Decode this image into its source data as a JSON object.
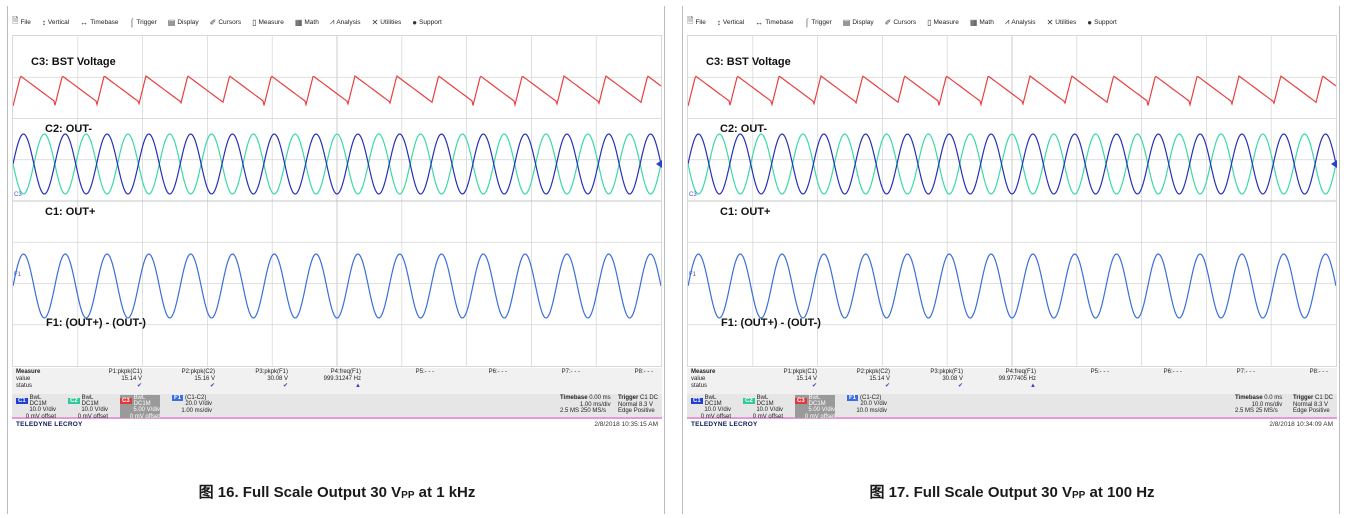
{
  "menu": [
    {
      "icon": "file-icon",
      "glyph": "🗎",
      "label": "File"
    },
    {
      "icon": "vertical-icon",
      "glyph": "↕",
      "label": "Vertical"
    },
    {
      "icon": "timebase-icon",
      "glyph": "↔",
      "label": "Timebase"
    },
    {
      "icon": "trigger-icon",
      "glyph": "⌠",
      "label": "Trigger"
    },
    {
      "icon": "display-icon",
      "glyph": "▤",
      "label": "Display"
    },
    {
      "icon": "cursors-icon",
      "glyph": "✐",
      "label": "Cursors"
    },
    {
      "icon": "measure-icon",
      "glyph": "▯",
      "label": "Measure"
    },
    {
      "icon": "math-icon",
      "glyph": "▦",
      "label": "Math"
    },
    {
      "icon": "analysis-icon",
      "glyph": "⩘",
      "label": "Analysis"
    },
    {
      "icon": "utilities-icon",
      "glyph": "✕",
      "label": "Utilities"
    },
    {
      "icon": "support-icon",
      "glyph": "●",
      "label": "Support"
    }
  ],
  "colors": {
    "c3": "#e8403f",
    "c2": "#3bd9a6",
    "c1": "#2630b8",
    "f1": "#3a6fd8",
    "grid": "#d4d4d4",
    "c1_tag": "#1f3fd6",
    "c2_tag": "#2fc99b",
    "c3_tag": "#e23a3a",
    "f1_tag": "#3b6fe0"
  },
  "panels": [
    {
      "labels": {
        "c3": "C3: BST Voltage",
        "c2": "C2: OUT-",
        "c1": "C1: OUT+",
        "f1": "F1: (OUT+) - (OUT-)",
        "ch_marker": "C3",
        "f_marker": "F1"
      },
      "wave_cycles": 15.5,
      "measure": {
        "title": "Measure",
        "value": "value",
        "status": "status",
        "cells": [
          {
            "name": "P1:pkpk(C1)",
            "value": "15.14 V",
            "ok": "✔"
          },
          {
            "name": "P2:pkpk(C2)",
            "value": "15.16 V",
            "ok": "✔"
          },
          {
            "name": "P3:pkpk(F1)",
            "value": "30.08 V",
            "ok": "✔"
          },
          {
            "name": "P4:freq(F1)",
            "value": "999.31247 Hz",
            "ok": "▲"
          },
          {
            "name": "P5:- - -",
            "value": "",
            "ok": ""
          },
          {
            "name": "P6:- - -",
            "value": "",
            "ok": ""
          },
          {
            "name": "P7:- - -",
            "value": "",
            "ok": ""
          },
          {
            "name": "P8:- - -",
            "value": "",
            "ok": ""
          }
        ]
      },
      "channels": [
        {
          "tag": "C1",
          "mode": "BwL DC1M",
          "vdiv": "10.0 V/div",
          "offset": "0 mV offset"
        },
        {
          "tag": "C2",
          "mode": "BwL DC1M",
          "vdiv": "10.0 V/div",
          "offset": "0 mV offset"
        },
        {
          "tag": "C3",
          "mode": "BwL DC1M",
          "vdiv": "5.00 V/div",
          "offset": "0 mV offset"
        },
        {
          "tag": "F1",
          "mode": "(C1-C2)",
          "vdiv": "20.0 V/div",
          "offset": "1.00 ms/div"
        }
      ],
      "timebase": {
        "label": "Timebase",
        "delay": "0.00 ms",
        "tdiv": "1.00 ms/div",
        "samples": "2.5 MS",
        "rate": "250 MS/s"
      },
      "trigger": {
        "label": "Trigger",
        "source": "C1 DC",
        "mode": "Normal",
        "level": "8.3 V",
        "type": "Edge",
        "slope": "Positive"
      },
      "brand": "TELEDYNE LECROY",
      "timestamp": "2/8/2018 10:35:15 AM",
      "caption": {
        "prefix": "图 16. Full Scale Output 30 V",
        "sub": "PP",
        "suffix": " at 1 kHz"
      }
    },
    {
      "labels": {
        "c3": "C3: BST Voltage",
        "c2": "C2: OUT-",
        "c1": "C1: OUT+",
        "f1": "F1: (OUT+) - (OUT-)",
        "ch_marker": "C3",
        "f_marker": "F1"
      },
      "wave_cycles": 15.5,
      "measure": {
        "title": "Measure",
        "value": "value",
        "status": "status",
        "cells": [
          {
            "name": "P1:pkpk(C1)",
            "value": "15.14 V",
            "ok": "✔"
          },
          {
            "name": "P2:pkpk(C2)",
            "value": "15.14 V",
            "ok": "✔"
          },
          {
            "name": "P3:pkpk(F1)",
            "value": "30.08 V",
            "ok": "✔"
          },
          {
            "name": "P4:freq(F1)",
            "value": "99.977405 Hz",
            "ok": "▲"
          },
          {
            "name": "P5:- - -",
            "value": "",
            "ok": ""
          },
          {
            "name": "P6:- - -",
            "value": "",
            "ok": ""
          },
          {
            "name": "P7:- - -",
            "value": "",
            "ok": ""
          },
          {
            "name": "P8:- - -",
            "value": "",
            "ok": ""
          }
        ]
      },
      "channels": [
        {
          "tag": "C1",
          "mode": "BwL DC1M",
          "vdiv": "10.0 V/div",
          "offset": "0 mV offset"
        },
        {
          "tag": "C2",
          "mode": "BwL DC1M",
          "vdiv": "10.0 V/div",
          "offset": "0 mV offset"
        },
        {
          "tag": "C3",
          "mode": "BwL DC1M",
          "vdiv": "5.00 V/div",
          "offset": "0 mV offset"
        },
        {
          "tag": "F1",
          "mode": "(C1-C2)",
          "vdiv": "20.0 V/div",
          "offset": "10.0 ms/div"
        }
      ],
      "timebase": {
        "label": "Timebase",
        "delay": "0.0 ms",
        "tdiv": "10.0 ms/div",
        "samples": "2.5 MS",
        "rate": "25 MS/s"
      },
      "trigger": {
        "label": "Trigger",
        "source": "C1 DC",
        "mode": "Normal",
        "level": "8.3 V",
        "type": "Edge",
        "slope": "Positive"
      },
      "brand": "TELEDYNE LECROY",
      "timestamp": "2/8/2018 10:34:09 AM",
      "caption": {
        "prefix": "图 17. Full Scale Output 30 V",
        "sub": "PP",
        "suffix": " at 100 Hz"
      }
    }
  ]
}
